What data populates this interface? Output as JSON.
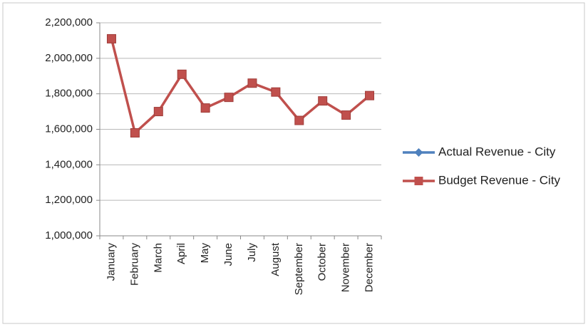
{
  "chart_data": {
    "type": "line",
    "categories": [
      "January",
      "February",
      "March",
      "April",
      "May",
      "June",
      "July",
      "August",
      "September",
      "October",
      "November",
      "December"
    ],
    "series": [
      {
        "name": "Actual Revenue - City",
        "color": "#4f81bd",
        "values": [
          null,
          null,
          null,
          null,
          null,
          null,
          null,
          null,
          null,
          null,
          null,
          null
        ]
      },
      {
        "name": "Budget Revenue - City",
        "color": "#c0504d",
        "values": [
          2110000,
          1580000,
          1700000,
          1910000,
          1720000,
          1780000,
          1860000,
          1810000,
          1650000,
          1760000,
          1680000,
          1790000
        ]
      }
    ],
    "ylim": [
      1000000,
      2200000
    ],
    "yticks": [
      {
        "value": 1000000,
        "label": "1,000,000"
      },
      {
        "value": 1200000,
        "label": "1,200,000"
      },
      {
        "value": 1400000,
        "label": "1,400,000"
      },
      {
        "value": 1600000,
        "label": "1,600,000"
      },
      {
        "value": 1800000,
        "label": "1,800,000"
      },
      {
        "value": 2000000,
        "label": "2,000,000"
      },
      {
        "value": 2200000,
        "label": "2,200,000"
      }
    ],
    "grid": true,
    "legend": "right"
  }
}
